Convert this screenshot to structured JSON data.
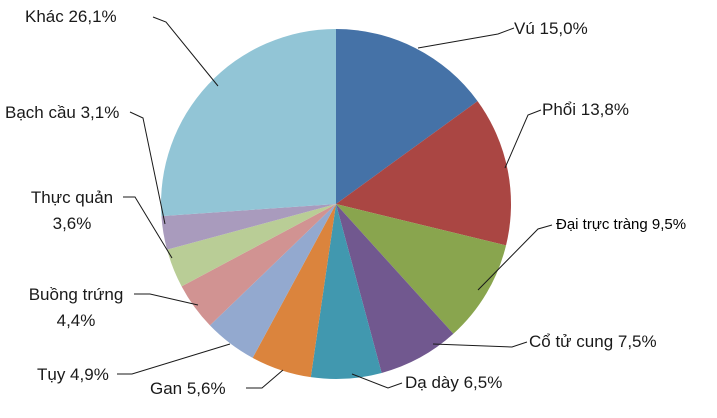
{
  "chart_data": {
    "type": "pie",
    "start_angle_deg": 0,
    "direction": "clockwise",
    "slices": [
      {
        "name": "Vú",
        "value": 15.0,
        "label": "Vú 15,0%",
        "color": "#4572A7"
      },
      {
        "name": "Phổi",
        "value": 13.8,
        "label": "Phổi 13,8%",
        "color": "#AA4643"
      },
      {
        "name": "Đại trực tràng",
        "value": 9.5,
        "label": "Đại trực tràng 9,5%",
        "color": "#89A54E"
      },
      {
        "name": "Cổ tử cung",
        "value": 7.5,
        "label": "Cổ tử cung 7,5%",
        "color": "#71588F"
      },
      {
        "name": "Dạ dày",
        "value": 6.5,
        "label": "Dạ dày 6,5%",
        "color": "#4198AF"
      },
      {
        "name": "Gan",
        "value": 5.6,
        "label": "Gan 5,6%",
        "color": "#DB843D"
      },
      {
        "name": "Tụy",
        "value": 4.9,
        "label": "Tụy 4,9%",
        "color": "#93A9CF"
      },
      {
        "name": "Buồng trứng",
        "value": 4.4,
        "label": "Buồng trứng 4,4%",
        "color": "#D19392"
      },
      {
        "name": "Thực quản",
        "value": 3.6,
        "label": "Thực quản 3,6%",
        "color": "#B9CD96"
      },
      {
        "name": "Bạch cầu",
        "value": 3.1,
        "label": "Bạch cầu 3,1%",
        "color": "#A99BBD"
      },
      {
        "name": "Khác",
        "value": 26.1,
        "label": "Khác 26,1%",
        "color": "#92C5D6"
      }
    ]
  }
}
